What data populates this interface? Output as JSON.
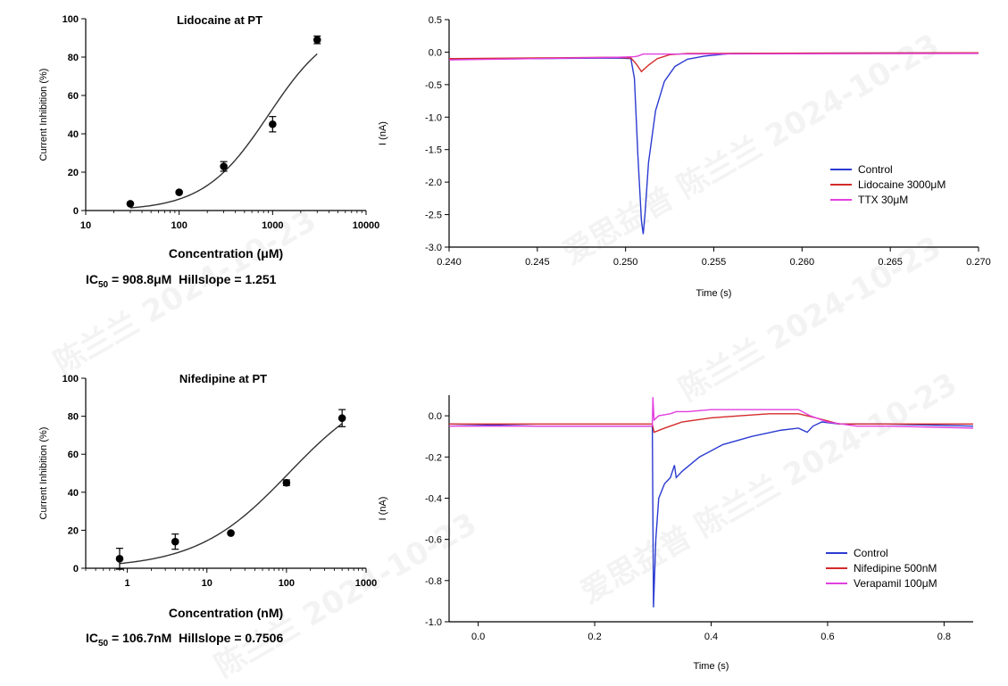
{
  "watermark": {
    "text_1": "陈兰兰 2024-10-23",
    "text_2": "爱思益普 陈兰兰 2024-10-23"
  },
  "chart_data": [
    {
      "id": "lidocaine-dose-response",
      "type": "scatter",
      "title": "Lidocaine at PT",
      "xlabel": "Concentration (μM)",
      "ylabel": "Current Inhibition (%)",
      "x_scale": "log",
      "xlim": [
        10,
        10000
      ],
      "ylim": [
        0,
        100
      ],
      "x_ticks": [
        10,
        100,
        1000,
        10000
      ],
      "x_tick_labels": [
        "10",
        "100",
        "1000",
        "10000"
      ],
      "y_ticks": [
        0,
        20,
        40,
        60,
        80,
        100
      ],
      "y_tick_labels": [
        "0",
        "20",
        "40",
        "60",
        "80",
        "100"
      ],
      "points": [
        {
          "x": 30,
          "y": 3.5,
          "err": 0
        },
        {
          "x": 100,
          "y": 9.5,
          "err": 0
        },
        {
          "x": 300,
          "y": 23,
          "err": 2.5
        },
        {
          "x": 1000,
          "y": 45,
          "err": 4
        },
        {
          "x": 3000,
          "y": 89,
          "err": 2
        }
      ],
      "fit": {
        "ic50": 908.8,
        "hill": 1.251,
        "x_from": 30,
        "x_to": 3000
      },
      "caption": {
        "ic_prefix": "IC",
        "ic_sub": "50",
        "ic_value": " = 908.8μM",
        "hill": "Hillslope = 1.251"
      }
    },
    {
      "id": "lidocaine-trace",
      "type": "line",
      "title": "",
      "xlabel": "Time (s)",
      "ylabel": "I (nA)",
      "xlim": [
        0.24,
        0.27
      ],
      "ylim": [
        -3.0,
        0.5
      ],
      "x_ticks": [
        0.24,
        0.245,
        0.25,
        0.255,
        0.26,
        0.265,
        0.27
      ],
      "x_tick_labels": [
        "0.240",
        "0.245",
        "0.250",
        "0.255",
        "0.260",
        "0.265",
        "0.270"
      ],
      "y_ticks": [
        0.5,
        0.0,
        -0.5,
        -1.0,
        -1.5,
        -2.0,
        -2.5,
        -3.0
      ],
      "y_tick_labels": [
        "0.5",
        "0.0",
        "-0.5",
        "-1.0",
        "-1.5",
        "-2.0",
        "-2.5",
        "-3.0"
      ],
      "legend_position": "right",
      "series": [
        {
          "name": "Control",
          "color": "#2b3bd1",
          "x": [
            0.24,
            0.245,
            0.2495,
            0.2503,
            0.2505,
            0.2507,
            0.2509,
            0.251,
            0.2511,
            0.2513,
            0.2517,
            0.2522,
            0.2528,
            0.2535,
            0.2545,
            0.256,
            0.27
          ],
          "y": [
            -0.11,
            -0.1,
            -0.09,
            -0.1,
            -0.4,
            -1.6,
            -2.6,
            -2.8,
            -2.5,
            -1.7,
            -0.9,
            -0.45,
            -0.22,
            -0.11,
            -0.06,
            -0.02,
            -0.01
          ]
        },
        {
          "name": "Lidocaine 3000μM",
          "color": "#d42a2a",
          "x": [
            0.24,
            0.245,
            0.2495,
            0.2503,
            0.2506,
            0.2509,
            0.2513,
            0.2518,
            0.2525,
            0.2535,
            0.27
          ],
          "y": [
            -0.1,
            -0.09,
            -0.08,
            -0.09,
            -0.18,
            -0.3,
            -0.2,
            -0.1,
            -0.04,
            -0.02,
            -0.01
          ]
        },
        {
          "name": "TTX 30μM",
          "color": "#e13fe0",
          "x": [
            0.24,
            0.245,
            0.2495,
            0.2505,
            0.2507,
            0.251,
            0.27
          ],
          "y": [
            -0.12,
            -0.1,
            -0.08,
            -0.07,
            -0.06,
            -0.03,
            -0.02
          ]
        }
      ]
    },
    {
      "id": "nifedipine-dose-response",
      "type": "scatter",
      "title": "Nifedipine at PT",
      "xlabel": "Concentration (nM)",
      "ylabel": "Current Inhibition (%)",
      "x_scale": "log",
      "xlim": [
        0.3,
        1000
      ],
      "ylim": [
        0,
        100
      ],
      "x_ticks": [
        1,
        10,
        100,
        1000
      ],
      "x_tick_labels": [
        "1",
        "10",
        "100",
        "1000"
      ],
      "y_ticks": [
        0,
        20,
        40,
        60,
        80,
        100
      ],
      "y_tick_labels": [
        "0",
        "20",
        "40",
        "60",
        "80",
        "100"
      ],
      "points": [
        {
          "x": 0.8,
          "y": 5,
          "err": 5.5
        },
        {
          "x": 4,
          "y": 14,
          "err": 4
        },
        {
          "x": 20,
          "y": 18.5,
          "err": 0
        },
        {
          "x": 100,
          "y": 45,
          "err": 1.5
        },
        {
          "x": 500,
          "y": 79,
          "err": 4.5
        }
      ],
      "fit": {
        "ic50": 106.7,
        "hill": 0.7506,
        "x_from": 0.8,
        "x_to": 500
      },
      "caption": {
        "ic_prefix": "IC",
        "ic_sub": "50",
        "ic_value": " = 106.7nM",
        "hill": "Hillslope = 0.7506"
      }
    },
    {
      "id": "nifedipine-trace",
      "type": "line",
      "title": "",
      "xlabel": "Time (s)",
      "ylabel": "I (nA)",
      "xlim": [
        -0.05,
        0.85
      ],
      "ylim": [
        -1.0,
        0.1
      ],
      "x_ticks": [
        0.0,
        0.2,
        0.4,
        0.6,
        0.8
      ],
      "x_tick_labels": [
        "0.0",
        "0.2",
        "0.4",
        "0.6",
        "0.8"
      ],
      "y_ticks": [
        0.0,
        -0.2,
        -0.4,
        -0.6,
        -0.8,
        -1.0
      ],
      "y_tick_labels": [
        "0.0",
        "-0.2",
        "-0.4",
        "-0.6",
        "-0.8",
        "-1.0"
      ],
      "legend_position": "right",
      "series": [
        {
          "name": "Control",
          "color": "#2b3bd1",
          "x": [
            -0.05,
            0.1,
            0.2,
            0.299,
            0.301,
            0.305,
            0.31,
            0.32,
            0.33,
            0.337,
            0.34,
            0.35,
            0.38,
            0.42,
            0.47,
            0.52,
            0.55,
            0.565,
            0.575,
            0.59,
            0.62,
            0.7,
            0.85
          ],
          "y": [
            -0.04,
            -0.05,
            -0.05,
            -0.05,
            -0.93,
            -0.6,
            -0.4,
            -0.33,
            -0.3,
            -0.24,
            -0.3,
            -0.27,
            -0.2,
            -0.14,
            -0.1,
            -0.07,
            -0.06,
            -0.08,
            -0.05,
            -0.03,
            -0.04,
            -0.04,
            -0.05
          ]
        },
        {
          "name": "Nifedipine 500nM",
          "color": "#d42a2a",
          "x": [
            -0.05,
            0.1,
            0.2,
            0.299,
            0.302,
            0.32,
            0.35,
            0.4,
            0.45,
            0.5,
            0.55,
            0.58,
            0.62,
            0.7,
            0.85
          ],
          "y": [
            -0.04,
            -0.04,
            -0.04,
            -0.04,
            -0.08,
            -0.06,
            -0.03,
            -0.01,
            0.0,
            0.01,
            0.01,
            -0.01,
            -0.04,
            -0.04,
            -0.04
          ]
        },
        {
          "name": "Verapamil 100μM",
          "color": "#e13fe0",
          "x": [
            -0.05,
            0.1,
            0.2,
            0.299,
            0.3,
            0.302,
            0.31,
            0.33,
            0.34,
            0.36,
            0.4,
            0.5,
            0.55,
            0.57,
            0.6,
            0.65,
            0.7,
            0.85
          ],
          "y": [
            -0.05,
            -0.05,
            -0.05,
            -0.05,
            0.09,
            -0.02,
            0.0,
            0.01,
            0.02,
            0.02,
            0.03,
            0.03,
            0.03,
            0.0,
            -0.03,
            -0.05,
            -0.05,
            -0.06
          ]
        }
      ]
    }
  ]
}
